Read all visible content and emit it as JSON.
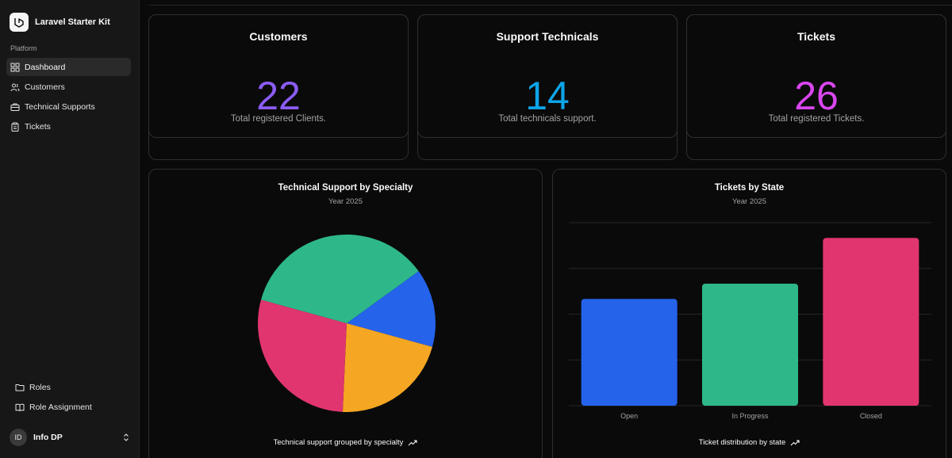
{
  "app": {
    "name": "Laravel Starter Kit"
  },
  "sidebar": {
    "group_label": "Platform",
    "items": [
      {
        "label": "Dashboard",
        "icon": "grid-icon",
        "active": true
      },
      {
        "label": "Customers",
        "icon": "users-icon",
        "active": false
      },
      {
        "label": "Technical Supports",
        "icon": "briefcase-icon",
        "active": false
      },
      {
        "label": "Tickets",
        "icon": "clipboard-icon",
        "active": false
      }
    ],
    "bottom_items": [
      {
        "label": "Roles",
        "icon": "folder-icon"
      },
      {
        "label": "Role Assignment",
        "icon": "book-icon"
      }
    ],
    "user": {
      "initials": "ID",
      "name": "Info DP"
    }
  },
  "stats": [
    {
      "title": "Customers",
      "value": "22",
      "desc": "Total registered Clients.",
      "color": "#8b5cf6"
    },
    {
      "title": "Support Technicals",
      "value": "14",
      "desc": "Total technicals support.",
      "color": "#0ea5e9"
    },
    {
      "title": "Tickets",
      "value": "26",
      "desc": "Total registered Tickets.",
      "color": "#d946ef"
    }
  ],
  "pie_card": {
    "title": "Technical Support by Specialty",
    "subtitle": "Year 2025",
    "footer": "Technical support grouped by specialty"
  },
  "bar_card": {
    "title": "Tickets by State",
    "subtitle": "Year 2025",
    "footer": "Ticket distribution by state"
  },
  "chart_data": [
    {
      "type": "pie",
      "title": "Technical Support by Specialty",
      "subtitle": "Year 2025",
      "slices": [
        {
          "value": 2,
          "color": "#2563eb"
        },
        {
          "value": 3,
          "color": "#f5a623"
        },
        {
          "value": 4,
          "color": "#e0356f"
        },
        {
          "value": 5,
          "color": "#2eb88a"
        }
      ]
    },
    {
      "type": "bar",
      "title": "Tickets by State",
      "subtitle": "Year 2025",
      "categories": [
        "Open",
        "In Progress",
        "Closed"
      ],
      "values": [
        7,
        8,
        11
      ],
      "colors": [
        "#2563eb",
        "#2eb88a",
        "#e0356f"
      ],
      "grid": true
    }
  ]
}
